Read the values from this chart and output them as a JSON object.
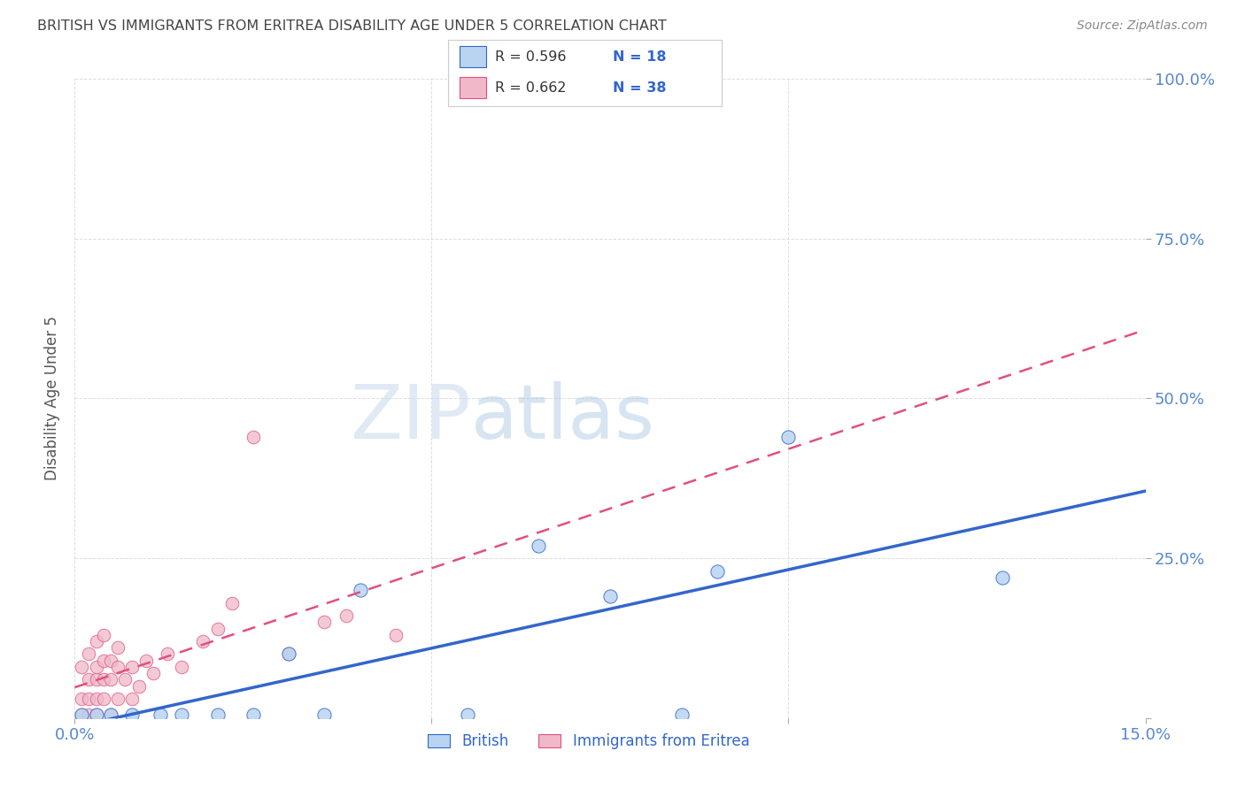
{
  "title": "BRITISH VS IMMIGRANTS FROM ERITREA DISABILITY AGE UNDER 5 CORRELATION CHART",
  "source": "Source: ZipAtlas.com",
  "ylabel": "Disability Age Under 5",
  "xlim": [
    0.0,
    0.15
  ],
  "ylim": [
    0.0,
    1.0
  ],
  "xticks": [
    0.0,
    0.05,
    0.1,
    0.15
  ],
  "xticklabels": [
    "0.0%",
    "",
    "",
    "15.0%"
  ],
  "yticks": [
    0.0,
    0.25,
    0.5,
    0.75,
    1.0
  ],
  "yticklabels": [
    "",
    "25.0%",
    "50.0%",
    "75.0%",
    "100.0%"
  ],
  "british_color": "#b8d4f0",
  "eritrea_color": "#f0b8c8",
  "british_line_color": "#3366cc",
  "eritrea_line_color": "#e05080",
  "british_x": [
    0.001,
    0.003,
    0.005,
    0.008,
    0.012,
    0.015,
    0.02,
    0.025,
    0.03,
    0.035,
    0.04,
    0.055,
    0.065,
    0.075,
    0.085,
    0.09,
    0.1,
    0.13
  ],
  "british_y": [
    0.005,
    0.005,
    0.005,
    0.005,
    0.005,
    0.005,
    0.005,
    0.005,
    0.1,
    0.005,
    0.2,
    0.005,
    0.27,
    0.19,
    0.005,
    0.23,
    0.44,
    0.22
  ],
  "eritrea_x": [
    0.001,
    0.001,
    0.001,
    0.002,
    0.002,
    0.002,
    0.002,
    0.003,
    0.003,
    0.003,
    0.003,
    0.003,
    0.004,
    0.004,
    0.004,
    0.004,
    0.005,
    0.005,
    0.005,
    0.006,
    0.006,
    0.006,
    0.007,
    0.008,
    0.008,
    0.009,
    0.01,
    0.011,
    0.013,
    0.015,
    0.018,
    0.02,
    0.022,
    0.025,
    0.03,
    0.035,
    0.038,
    0.045
  ],
  "eritrea_y": [
    0.005,
    0.03,
    0.08,
    0.005,
    0.03,
    0.06,
    0.1,
    0.005,
    0.03,
    0.06,
    0.08,
    0.12,
    0.03,
    0.06,
    0.09,
    0.13,
    0.005,
    0.06,
    0.09,
    0.03,
    0.08,
    0.11,
    0.06,
    0.03,
    0.08,
    0.05,
    0.09,
    0.07,
    0.1,
    0.08,
    0.12,
    0.14,
    0.18,
    0.44,
    0.1,
    0.15,
    0.16,
    0.13
  ],
  "watermark_zip": "ZIP",
  "watermark_atlas": "atlas",
  "background_color": "#ffffff",
  "grid_color": "#dddddd",
  "title_color": "#444444",
  "tick_color": "#5588cc",
  "ylabel_color": "#555555"
}
